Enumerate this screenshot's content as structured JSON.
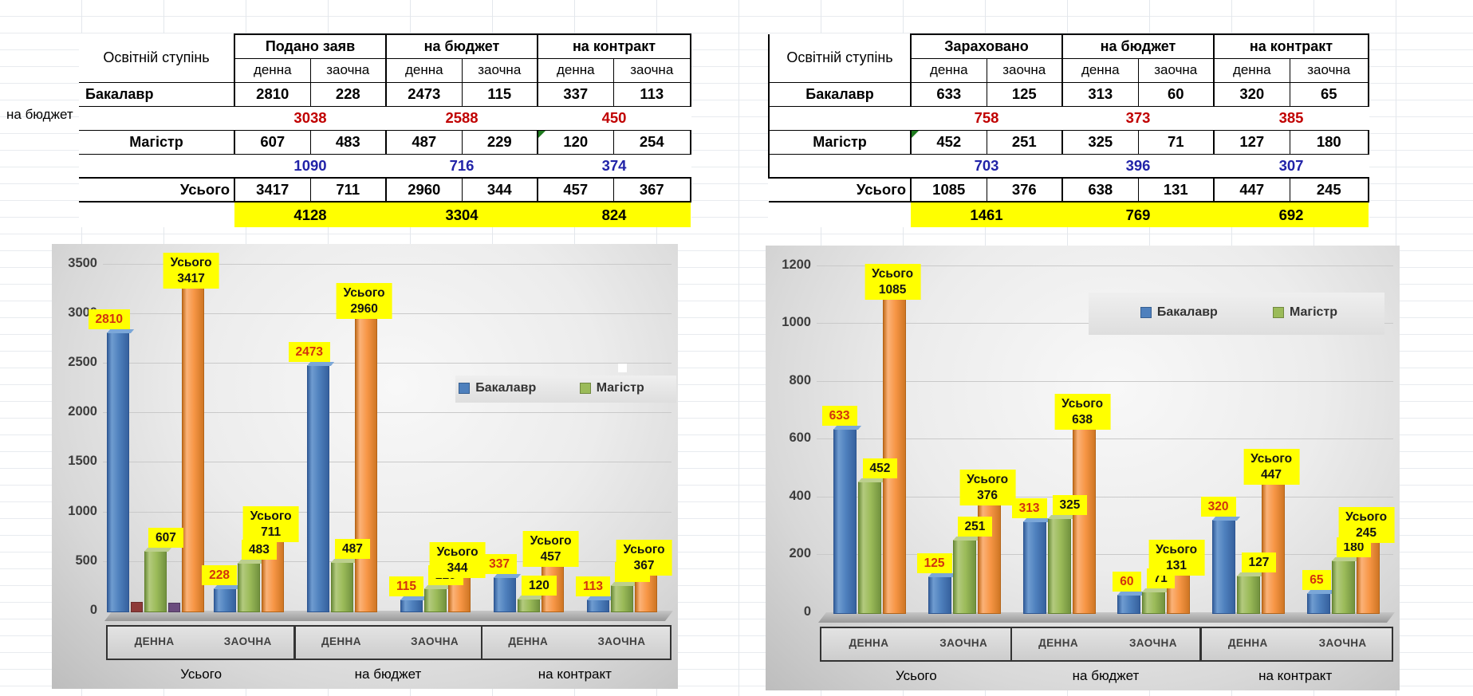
{
  "sheet": {
    "stray_cell_text": "на бюджет"
  },
  "tables": [
    {
      "corner": "Освітній ступінь",
      "groups": [
        "Подано заяв",
        "на бюджет",
        "на контракт"
      ],
      "subcols": [
        "денна",
        "заочна",
        "денна",
        "заочна",
        "денна",
        "заочна"
      ],
      "row_bakalavr": {
        "label": "Бакалавр",
        "values": [
          "2810",
          "228",
          "2473",
          "115",
          "337",
          "113"
        ]
      },
      "subtotal_bakalavr": [
        "3038",
        "2588",
        "450"
      ],
      "row_magistr": {
        "label": "Магістр",
        "values": [
          "607",
          "483",
          "487",
          "229",
          "120",
          "254"
        ]
      },
      "subtotal_magistr": [
        "1090",
        "716",
        "374"
      ],
      "row_usogo": {
        "label": "Усього",
        "values": [
          "3417",
          "711",
          "2960",
          "344",
          "457",
          "367"
        ]
      },
      "total": [
        "4128",
        "3304",
        "824"
      ]
    },
    {
      "corner": "Освітній ступінь",
      "groups": [
        "Зараховано",
        "на бюджет",
        "на контракт"
      ],
      "subcols": [
        "денна",
        "заочна",
        "денна",
        "заочна",
        "денна",
        "заочна"
      ],
      "row_bakalavr": {
        "label": "Бакалавр",
        "values": [
          "633",
          "125",
          "313",
          "60",
          "320",
          "65"
        ]
      },
      "subtotal_bakalavr": [
        "758",
        "373",
        "385"
      ],
      "row_magistr": {
        "label": "Магістр",
        "values": [
          "452",
          "251",
          "325",
          "71",
          "127",
          "180"
        ]
      },
      "subtotal_magistr": [
        "703",
        "396",
        "307"
      ],
      "row_usogo": {
        "label": "Усього",
        "values": [
          "1085",
          "376",
          "638",
          "131",
          "447",
          "245"
        ]
      },
      "total": [
        "1461",
        "769",
        "692"
      ]
    }
  ],
  "chart_data": [
    {
      "type": "bar",
      "name": "Подано заяв",
      "groups": [
        "Усього",
        "на бюджет",
        "на контракт"
      ],
      "categories": [
        "ДЕННА",
        "ЗАОЧНА",
        "ДЕННА",
        "ЗАОЧНА",
        "ДЕННА",
        "ЗАОЧНА"
      ],
      "series": [
        {
          "name": "Бакалавр",
          "color": "#4e80bd",
          "label_color": "#d2330f",
          "values": [
            2810,
            228,
            2473,
            115,
            337,
            113
          ]
        },
        {
          "name": "Магістр",
          "color": "#9bbb59",
          "label_color": "#141414",
          "values": [
            607,
            483,
            487,
            229,
            120,
            254
          ]
        },
        {
          "name": "Усього",
          "color": "#f79646",
          "label_color": "#141414",
          "label_prefix": "Усього",
          "values": [
            3417,
            711,
            2960,
            344,
            457,
            367
          ]
        }
      ],
      "ylim": [
        0,
        3500
      ],
      "ystep": 500,
      "legend": [
        "Бакалавр",
        "Магістр"
      ],
      "legend_position": "inside-right",
      "grid": true,
      "label_background": "#ffff00",
      "extra_markers": {
        "category": "ДЕННА (Усього)",
        "colors": [
          "#8e3a38",
          "#6b4c7e"
        ]
      }
    },
    {
      "type": "bar",
      "name": "Зараховано",
      "groups": [
        "Усього",
        "на бюджет",
        "на контракт"
      ],
      "categories": [
        "ДЕННА",
        "ЗАОЧНА",
        "ДЕННА",
        "ЗАОЧНА",
        "ДЕННА",
        "ЗАОЧНА"
      ],
      "series": [
        {
          "name": "Бакалавр",
          "color": "#4e80bd",
          "label_color": "#d2330f",
          "values": [
            633,
            125,
            313,
            60,
            320,
            65
          ]
        },
        {
          "name": "Магістр",
          "color": "#9bbb59",
          "label_color": "#141414",
          "values": [
            452,
            251,
            325,
            71,
            127,
            180
          ]
        },
        {
          "name": "Усього",
          "color": "#f79646",
          "label_color": "#141414",
          "label_prefix": "Усього",
          "values": [
            1085,
            376,
            638,
            131,
            447,
            245
          ]
        }
      ],
      "ylim": [
        0,
        1200
      ],
      "ystep": 200,
      "legend": [
        "Бакалавр",
        "Магістр"
      ],
      "legend_position": "inside-right",
      "grid": true,
      "label_background": "#ffff00"
    }
  ]
}
